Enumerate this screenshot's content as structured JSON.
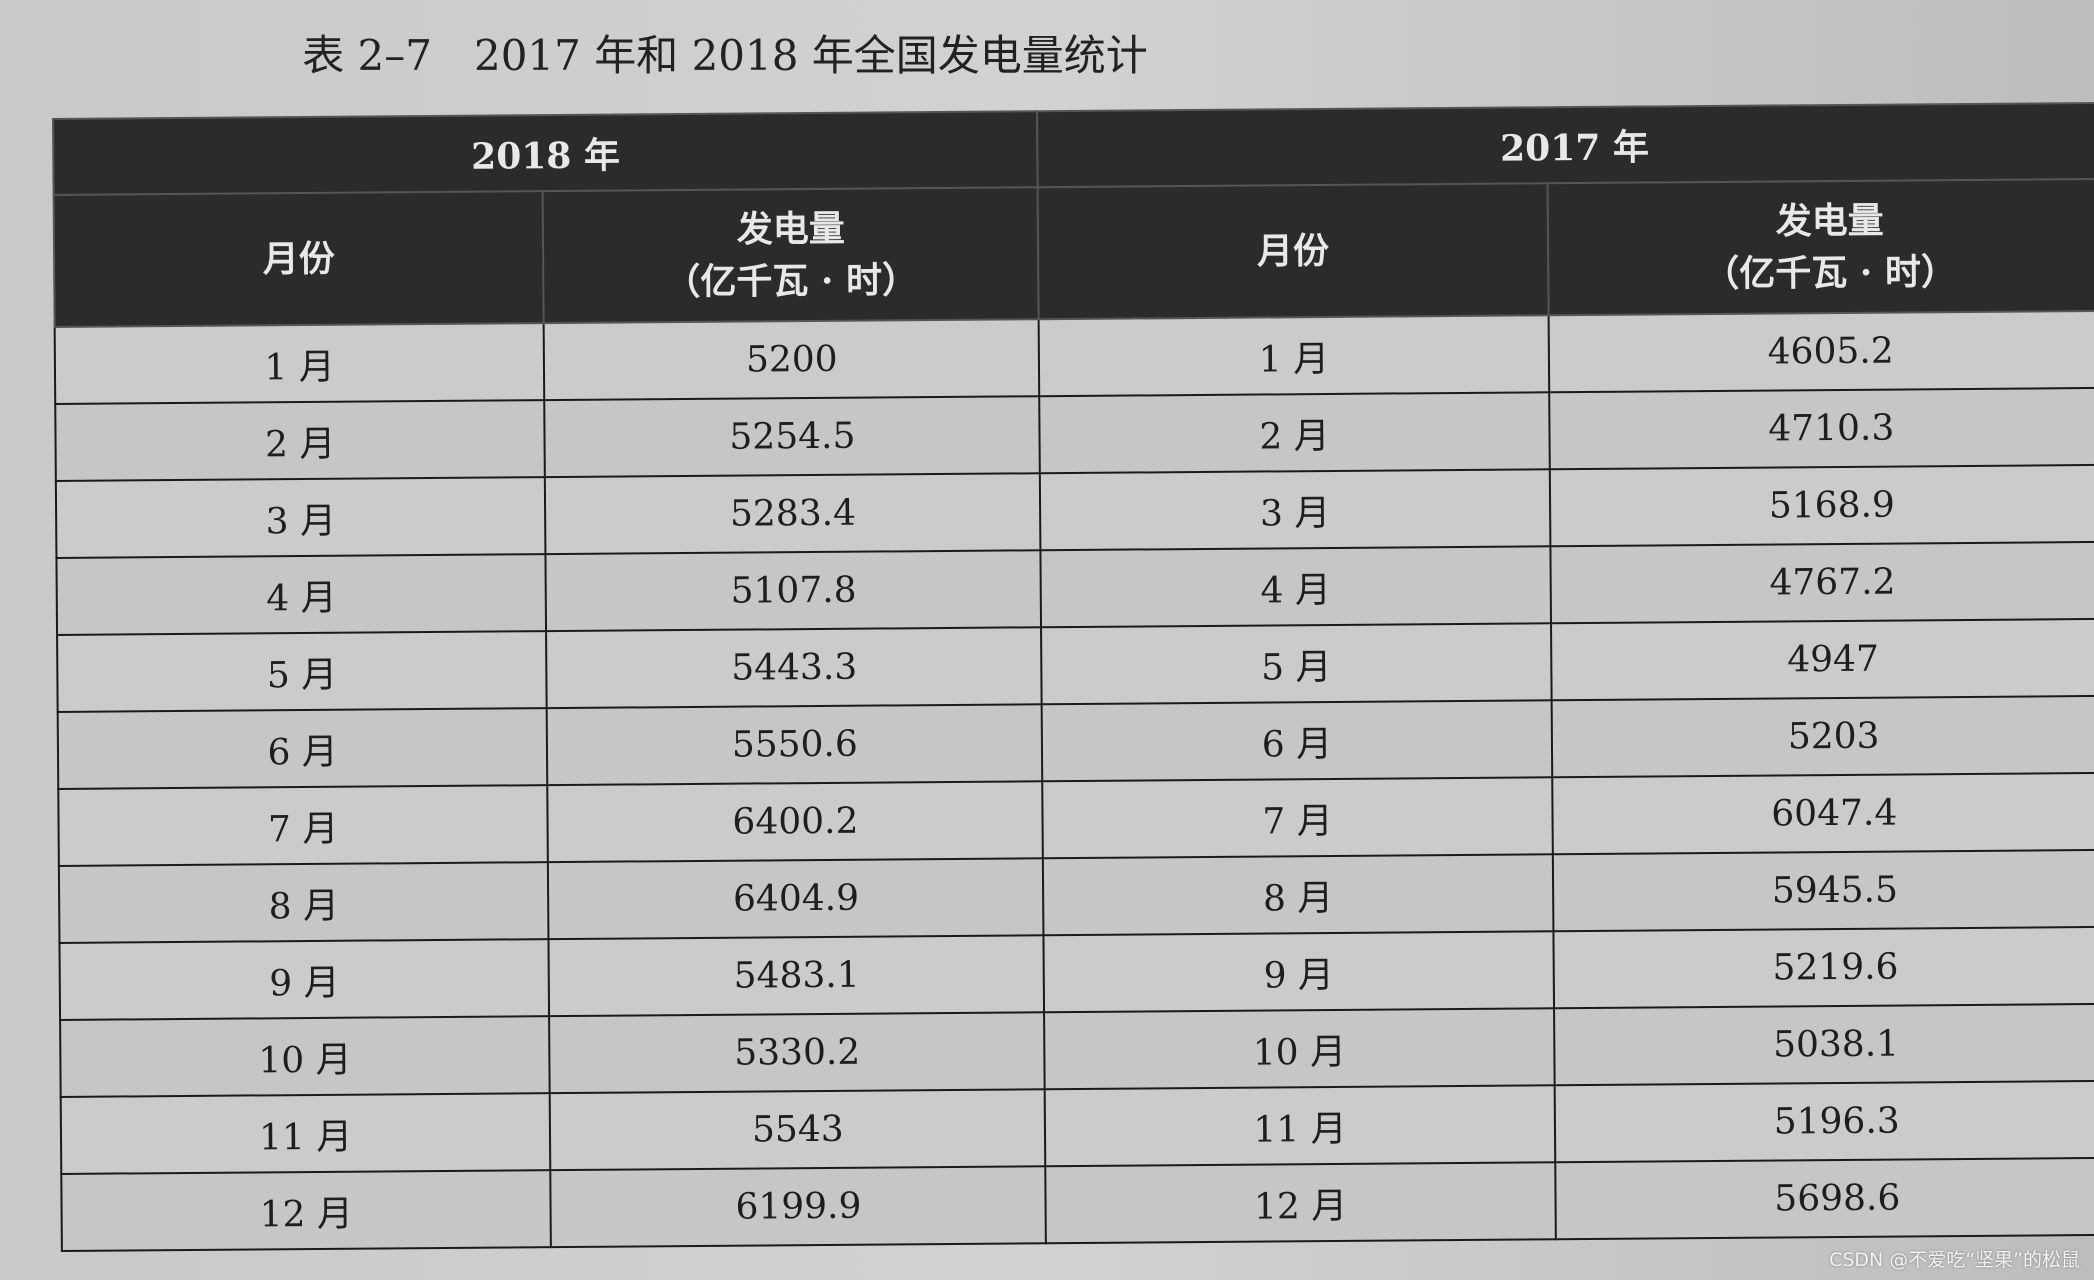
{
  "title": "表 2–7　2017 年和 2018 年全国发电量统计",
  "headers": {
    "year_2018": "2018 年",
    "year_2017": "2017 年",
    "month": "月份",
    "generation": "发电量",
    "unit": "（亿千瓦 · 时）"
  },
  "rows": [
    {
      "m18": "1 月",
      "v18": "5200",
      "m17": "1 月",
      "v17": "4605.2"
    },
    {
      "m18": "2 月",
      "v18": "5254.5",
      "m17": "2 月",
      "v17": "4710.3"
    },
    {
      "m18": "3 月",
      "v18": "5283.4",
      "m17": "3 月",
      "v17": "5168.9"
    },
    {
      "m18": "4 月",
      "v18": "5107.8",
      "m17": "4 月",
      "v17": "4767.2"
    },
    {
      "m18": "5 月",
      "v18": "5443.3",
      "m17": "5 月",
      "v17": "4947"
    },
    {
      "m18": "6 月",
      "v18": "5550.6",
      "m17": "6 月",
      "v17": "5203"
    },
    {
      "m18": "7 月",
      "v18": "6400.2",
      "m17": "7 月",
      "v17": "6047.4"
    },
    {
      "m18": "8 月",
      "v18": "6404.9",
      "m17": "8 月",
      "v17": "5945.5"
    },
    {
      "m18": "9 月",
      "v18": "5483.1",
      "m17": "9 月",
      "v17": "5219.6"
    },
    {
      "m18": "10 月",
      "v18": "5330.2",
      "m17": "10 月",
      "v17": "5038.1"
    },
    {
      "m18": "11 月",
      "v18": "5543",
      "m17": "11 月",
      "v17": "5196.3"
    },
    {
      "m18": "12 月",
      "v18": "6199.9",
      "m17": "12 月",
      "v17": "5698.6"
    }
  ],
  "watermark": "CSDN @不爱吃“坚果”的松鼠"
}
